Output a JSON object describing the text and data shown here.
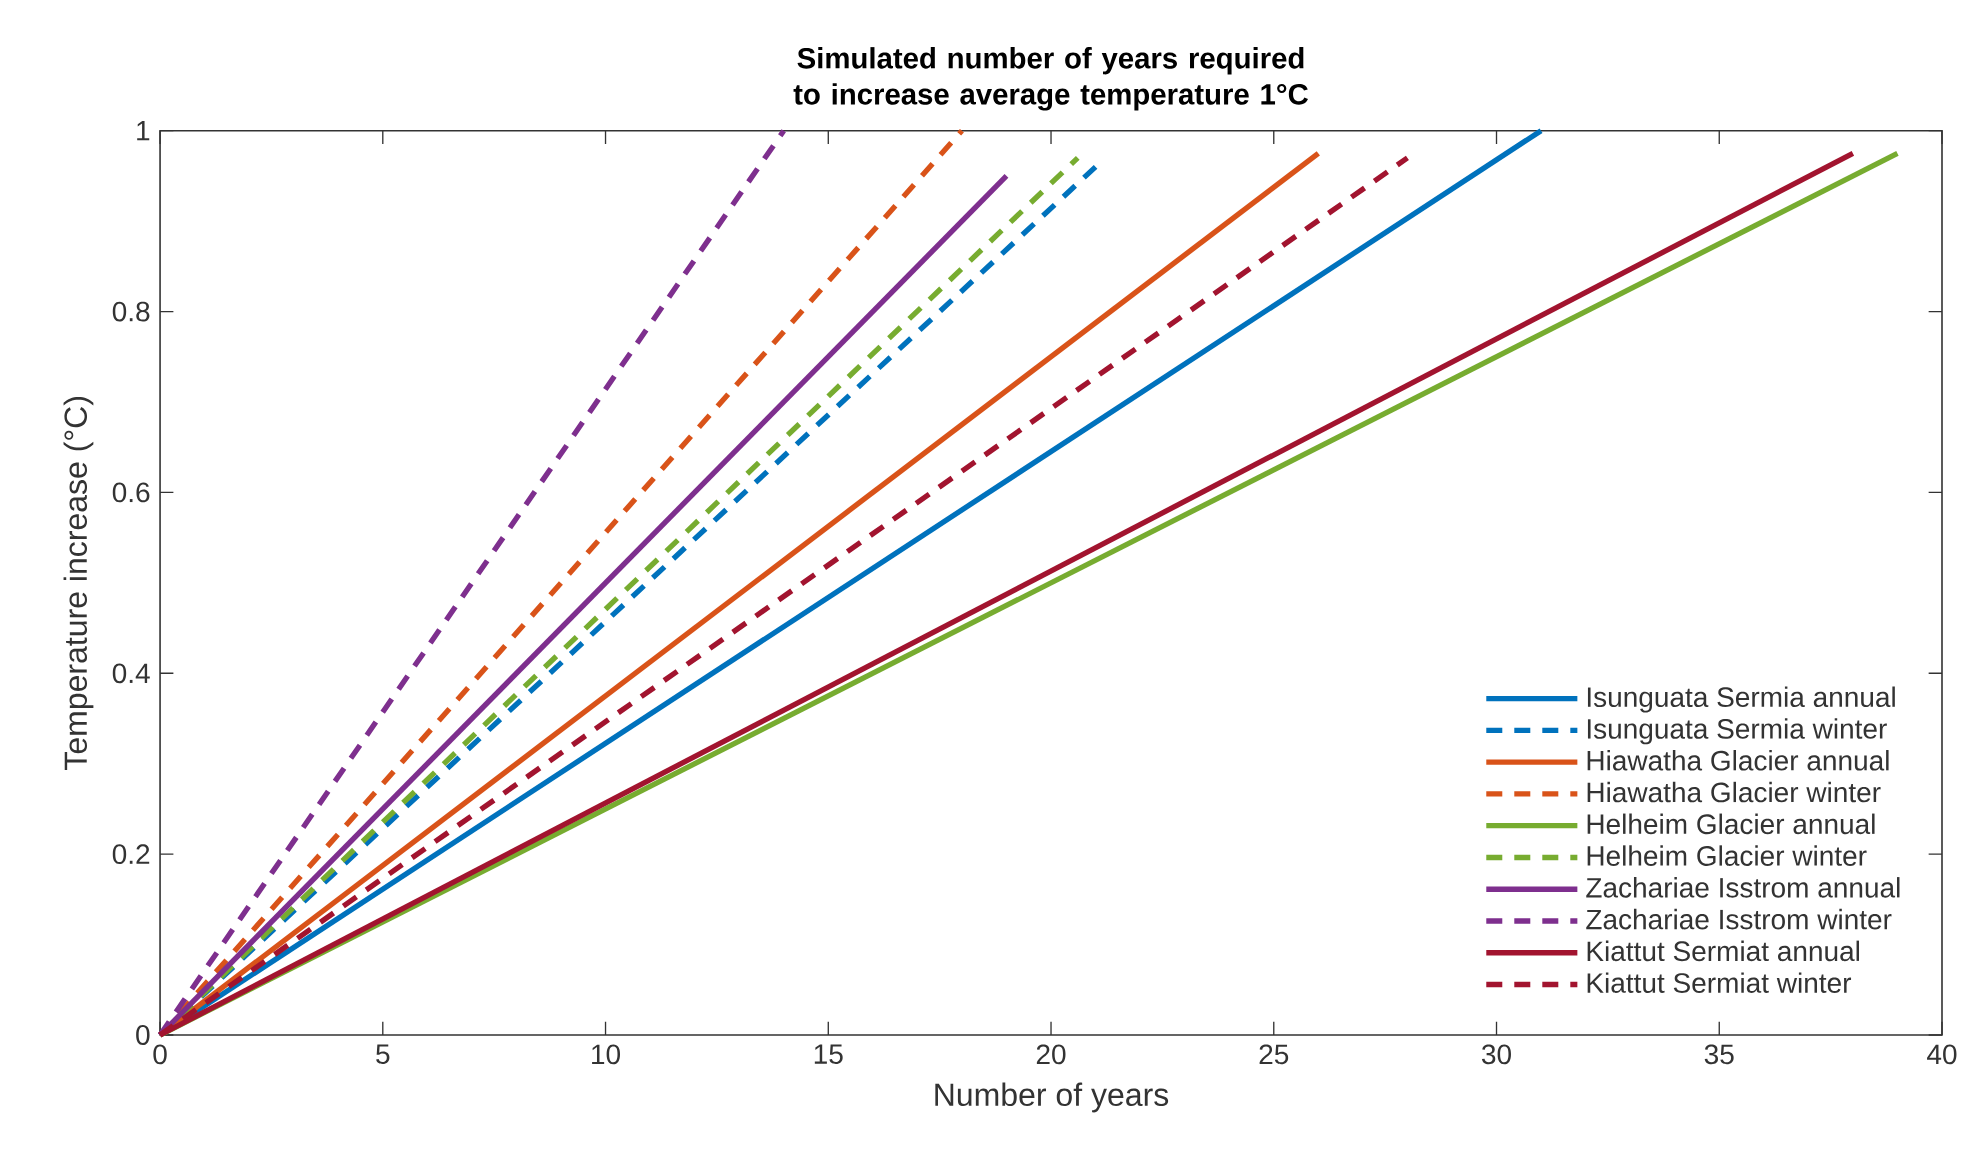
{
  "chart_data": {
    "type": "line",
    "title": "Simulated number of years required to increase average temperature 1°C",
    "xlabel": "Number of years",
    "ylabel": "Temperature increase (°C)",
    "xlim": [
      0,
      40
    ],
    "ylim": [
      0,
      1
    ],
    "xticks": [
      0,
      5,
      10,
      15,
      20,
      25,
      30,
      35,
      40
    ],
    "yticks": [
      0,
      0.2,
      0.4,
      0.6,
      0.8,
      1
    ],
    "grid": false,
    "legend": "bottom right",
    "marker": "none",
    "series": [
      {
        "name": "Isunguata Sermia annual",
        "color": "#0072bd",
        "line_style": "solid",
        "x": [
          0,
          31
        ],
        "values": [
          0,
          1.0
        ]
      },
      {
        "name": "Isunguata Sermia winter",
        "color": "#0072bd",
        "line_style": "dashed",
        "x": [
          0,
          21
        ],
        "values": [
          0,
          0.96
        ]
      },
      {
        "name": "Hiawatha Glacier annual",
        "color": "#d95319",
        "line_style": "solid",
        "x": [
          0,
          26
        ],
        "values": [
          0,
          0.975
        ]
      },
      {
        "name": "Hiawatha Glacier winter",
        "color": "#d95319",
        "line_style": "dashed",
        "x": [
          0,
          18
        ],
        "values": [
          0,
          1.0
        ]
      },
      {
        "name": "Helheim Glacier annual",
        "color": "#77ac30",
        "line_style": "solid",
        "x": [
          0,
          39
        ],
        "values": [
          0,
          0.975
        ]
      },
      {
        "name": "Helheim Glacier winter",
        "color": "#77ac30",
        "line_style": "dashed",
        "x": [
          0,
          20.6
        ],
        "values": [
          0,
          0.97
        ]
      },
      {
        "name": "Zachariae Isstrom annual",
        "color": "#7e2f8e",
        "line_style": "solid",
        "x": [
          0,
          19
        ],
        "values": [
          0,
          0.95
        ]
      },
      {
        "name": "Zachariae Isstrom winter",
        "color": "#7e2f8e",
        "line_style": "dashed",
        "x": [
          0,
          14
        ],
        "values": [
          0,
          1.0
        ]
      },
      {
        "name": "Kiattut Sermiat annual",
        "color": "#a2142f",
        "line_style": "solid",
        "x": [
          0,
          38
        ],
        "values": [
          0,
          0.975
        ]
      },
      {
        "name": "Kiattut Sermiat winter",
        "color": "#a2142f",
        "line_style": "dashed",
        "x": [
          0,
          28
        ],
        "values": [
          0,
          0.97
        ]
      }
    ]
  }
}
